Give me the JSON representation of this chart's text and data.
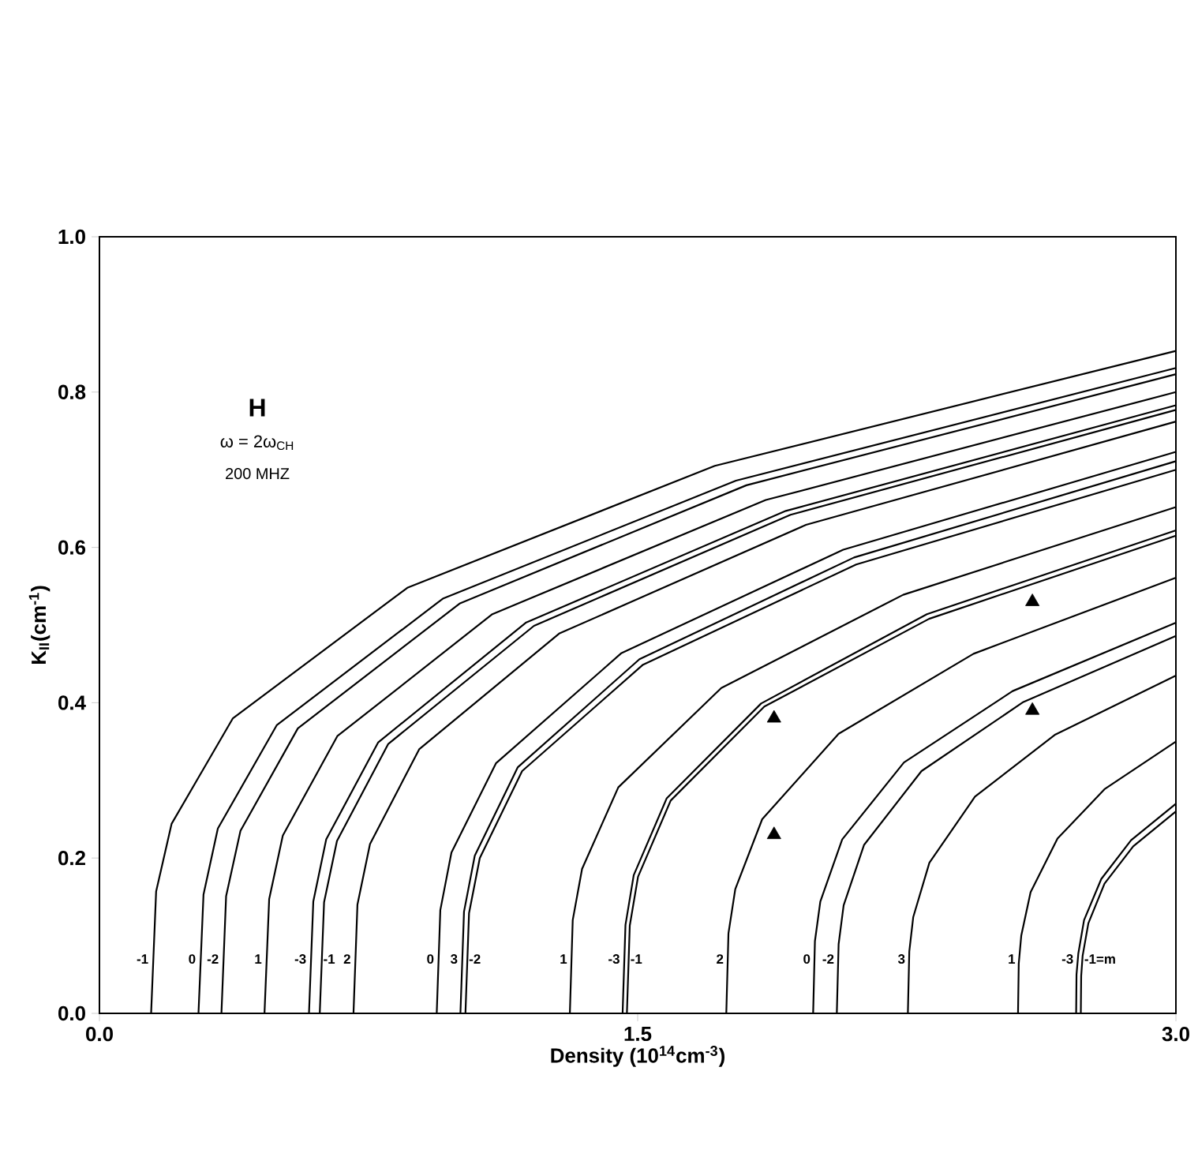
{
  "chart_data": {
    "type": "line",
    "xlabel": "Density (10$^{14}$cm$^{-3}$)",
    "ylabel": "K$_{II}$(cm$^{-1}$)",
    "annotations": [
      "H",
      "ω = 2ω$_{CH}$",
      "200 MHZ"
    ],
    "xlim": [
      0,
      3.0
    ],
    "ylim": [
      0,
      1.0
    ],
    "xticks": [
      {
        "value": 0,
        "label": "0.0"
      },
      1.5,
      {
        "value": 3,
        "label": "3.0"
      }
    ],
    "yticks": [
      {
        "value": 0,
        "label": "0.0"
      },
      0.2,
      0.4,
      0.6,
      0.8,
      {
        "value": 1,
        "label": "1.0"
      }
    ],
    "marker": "none",
    "line_style": "solid",
    "series": [
      {
        "name": "-1",
        "color": "#000000",
        "x": [
          0.144,
          0.158,
          0.201,
          0.372,
          0.858,
          1.715,
          3.0
        ],
        "values": [
          0,
          0.157,
          0.244,
          0.38,
          0.548,
          0.705,
          0.853
        ]
      },
      {
        "name": "0",
        "color": "#000000",
        "x": [
          0.276,
          0.29,
          0.33,
          0.494,
          0.957,
          1.774,
          3.0
        ],
        "values": [
          0,
          0.153,
          0.238,
          0.371,
          0.534,
          0.686,
          0.831
        ]
      },
      {
        "name": "-2",
        "color": "#000000",
        "x": [
          0.34,
          0.353,
          0.393,
          0.553,
          1.005,
          1.803,
          3.0
        ],
        "values": [
          0,
          0.151,
          0.235,
          0.367,
          0.528,
          0.68,
          0.823
        ]
      },
      {
        "name": "1",
        "color": "#000000",
        "x": [
          0.46,
          0.473,
          0.511,
          0.663,
          1.095,
          1.857,
          3.0
        ],
        "values": [
          0,
          0.147,
          0.229,
          0.357,
          0.514,
          0.661,
          0.8
        ]
      },
      {
        "name": "-3",
        "color": "#000000",
        "x": [
          0.584,
          0.596,
          0.632,
          0.777,
          1.188,
          1.913,
          3.0
        ],
        "values": [
          0,
          0.144,
          0.224,
          0.349,
          0.503,
          0.647,
          0.783
        ]
      },
      {
        "name": "-1",
        "color": "#000000",
        "x": [
          0.614,
          0.626,
          0.662,
          0.805,
          1.211,
          1.926,
          3.0
        ],
        "values": [
          0,
          0.143,
          0.222,
          0.347,
          0.499,
          0.642,
          0.777
        ]
      },
      {
        "name": "2",
        "color": "#000000",
        "x": [
          0.708,
          0.719,
          0.754,
          0.891,
          1.281,
          1.969,
          3.0
        ],
        "values": [
          0,
          0.14,
          0.218,
          0.34,
          0.489,
          0.629,
          0.762
        ]
      },
      {
        "name": "0",
        "color": "#000000",
        "x": [
          0.94,
          0.95,
          0.981,
          1.105,
          1.455,
          2.073,
          3.0
        ],
        "values": [
          0,
          0.133,
          0.207,
          0.322,
          0.464,
          0.597,
          0.723
        ]
      },
      {
        "name": "3",
        "color": "#000000",
        "x": [
          1.006,
          1.016,
          1.046,
          1.166,
          1.505,
          2.103,
          3.0
        ],
        "values": [
          0,
          0.131,
          0.203,
          0.317,
          0.456,
          0.587,
          0.711
        ]
      },
      {
        "name": "-2",
        "color": "#000000",
        "x": [
          1.02,
          1.03,
          1.06,
          1.178,
          1.515,
          2.109,
          3.0
        ],
        "values": [
          0,
          0.129,
          0.2,
          0.312,
          0.449,
          0.578,
          0.7
        ]
      },
      {
        "name": "1",
        "color": "#000000",
        "x": [
          1.311,
          1.319,
          1.345,
          1.446,
          1.733,
          2.24,
          3.0
        ],
        "values": [
          0,
          0.12,
          0.186,
          0.291,
          0.419,
          0.539,
          0.652
        ]
      },
      {
        "name": "-3",
        "color": "#000000",
        "x": [
          1.458,
          1.466,
          1.489,
          1.581,
          1.844,
          2.306,
          3.0
        ],
        "values": [
          0,
          0.114,
          0.178,
          0.277,
          0.399,
          0.514,
          0.622
        ]
      },
      {
        "name": "-1",
        "color": "#000000",
        "x": [
          1.47,
          1.478,
          1.501,
          1.592,
          1.853,
          2.312,
          3.0
        ],
        "values": [
          0,
          0.113,
          0.176,
          0.274,
          0.395,
          0.508,
          0.615
        ]
      },
      {
        "name": "2",
        "color": "#000000",
        "x": [
          1.747,
          1.753,
          1.772,
          1.847,
          2.06,
          2.436,
          3.0
        ],
        "values": [
          0,
          0.103,
          0.16,
          0.25,
          0.36,
          0.463,
          0.561
        ]
      },
      {
        "name": "0",
        "color": "#000000",
        "x": [
          1.989,
          1.994,
          2.009,
          2.07,
          2.242,
          2.545,
          3.0
        ],
        "values": [
          0,
          0.093,
          0.144,
          0.224,
          0.323,
          0.415,
          0.503
        ]
      },
      {
        "name": "-2",
        "color": "#000000",
        "x": [
          2.055,
          2.06,
          2.074,
          2.131,
          2.291,
          2.575,
          3.0
        ],
        "values": [
          0,
          0.089,
          0.139,
          0.217,
          0.312,
          0.401,
          0.486
        ]
      },
      {
        "name": "3",
        "color": "#000000",
        "x": [
          2.253,
          2.257,
          2.268,
          2.313,
          2.44,
          2.664,
          3.0
        ],
        "values": [
          0,
          0.08,
          0.124,
          0.194,
          0.279,
          0.359,
          0.435
        ]
      },
      {
        "name": "1",
        "color": "#000000",
        "x": [
          2.56,
          2.562,
          2.569,
          2.595,
          2.67,
          2.802,
          3.0
        ],
        "values": [
          0,
          0.064,
          0.1,
          0.156,
          0.225,
          0.289,
          0.35
        ]
      },
      {
        "name": "-3",
        "color": "#000000",
        "x": [
          2.722,
          2.723,
          2.728,
          2.744,
          2.792,
          2.875,
          3.0
        ],
        "values": [
          0,
          0.05,
          0.077,
          0.12,
          0.173,
          0.223,
          0.27
        ]
      },
      {
        "name": "-1=m",
        "color": "#000000",
        "x": [
          2.735,
          2.736,
          2.74,
          2.756,
          2.801,
          2.881,
          3.0
        ],
        "values": [
          0,
          0.048,
          0.074,
          0.116,
          0.167,
          0.215,
          0.26
        ]
      },
      {
        "type": "scatter",
        "marker": "triangle",
        "color": "#000000",
        "x": [
          1.88,
          1.88,
          2.6,
          2.6
        ],
        "values": [
          0.38,
          0.23,
          0.53,
          0.39
        ]
      }
    ]
  }
}
